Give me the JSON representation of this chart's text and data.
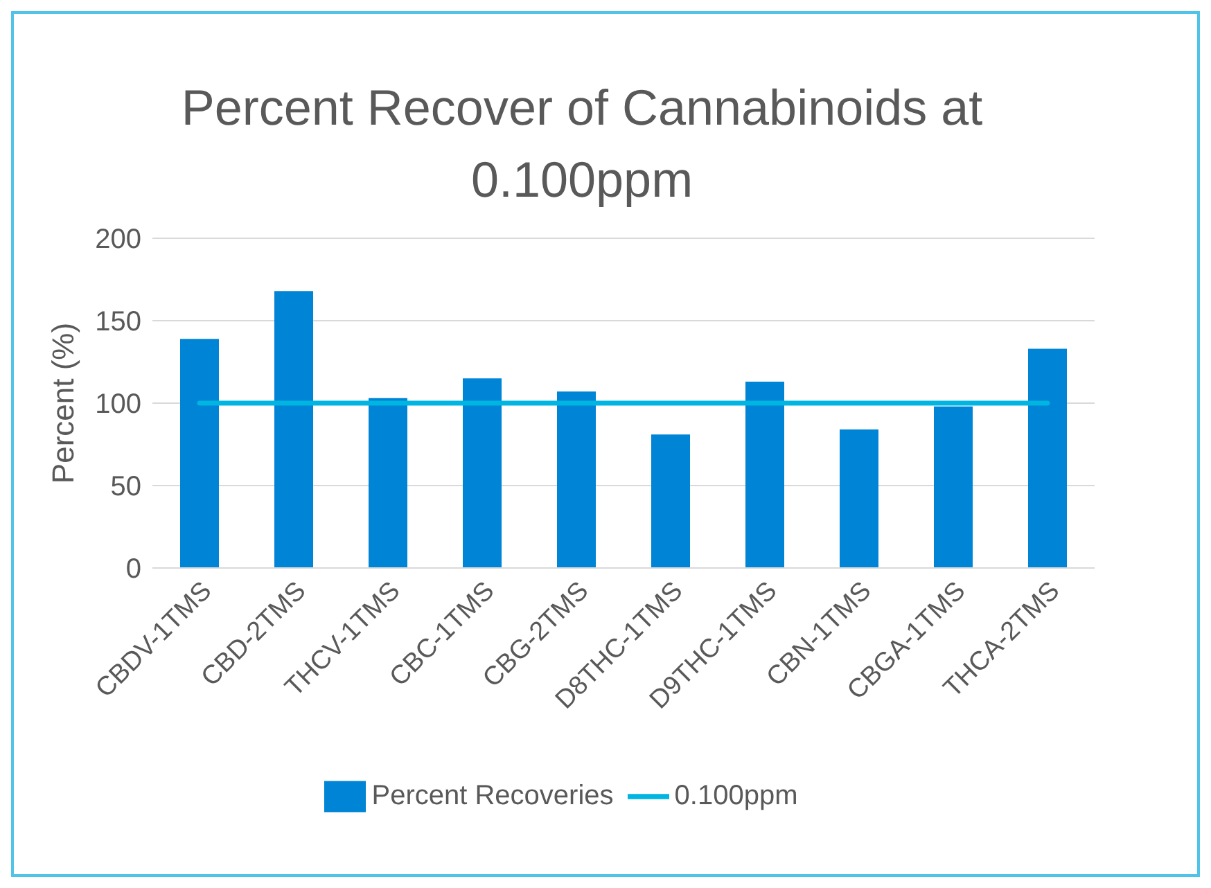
{
  "chart_data": {
    "type": "bar",
    "title": "Percent Recover of Cannabinoids at 0.100ppm",
    "ylabel": "Percent (%)",
    "categories": [
      "CBDV-1TMS",
      "CBD-2TMS",
      "THCV-1TMS",
      "CBC-1TMS",
      "CBG-2TMS",
      "D8THC-1TMS",
      "D9THC-1TMS",
      "CBN-1TMS",
      "CBGA-1TMS",
      "THCA-2TMS"
    ],
    "series": [
      {
        "name": "Percent Recoveries",
        "color": "#0084d5",
        "values": [
          139,
          168,
          103,
          115,
          107,
          81,
          113,
          84,
          98,
          133
        ]
      },
      {
        "name": "0.100ppm",
        "type": "line",
        "color": "#00b5e2",
        "values": [
          100,
          100,
          100,
          100,
          100,
          100,
          100,
          100,
          100,
          100
        ]
      }
    ],
    "ylim": [
      0,
      200
    ],
    "yticks": [
      0,
      50,
      100,
      150,
      200
    ],
    "grid": "y",
    "legend": "bottom",
    "marker": "none"
  }
}
